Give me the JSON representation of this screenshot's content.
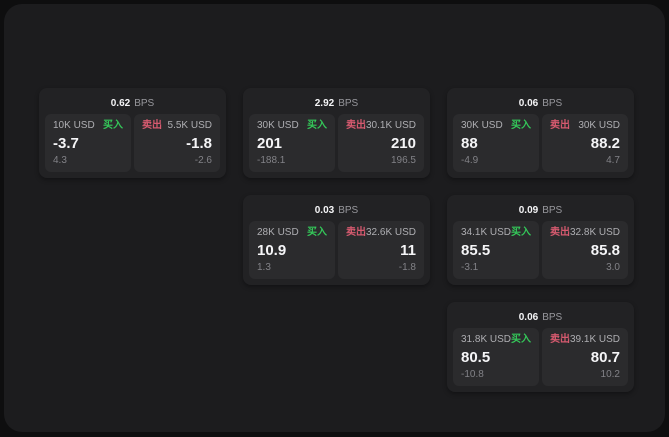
{
  "labels": {
    "bps_unit": "BPS",
    "buy": "买入",
    "sell": "卖出"
  },
  "colors": {
    "page_background": "#0e0e0f",
    "panel_background": "#1c1c1e",
    "card_background": "#222224",
    "tile_background": "#2b2b2d",
    "buy_green": "#34c759",
    "sell_red": "#d65a6f",
    "primary_text": "#f5f5f7",
    "secondary_text": "#aeaeb2",
    "muted_text": "#828287"
  },
  "cards": [
    {
      "bps": "0.62",
      "buy": {
        "amount": "10K USD",
        "value": "-3.7",
        "sub": "4.3"
      },
      "sell": {
        "amount": "5.5K USD",
        "value": "-1.8",
        "sub": "-2.6"
      }
    },
    {
      "bps": "2.92",
      "buy": {
        "amount": "30K USD",
        "value": "201",
        "sub": "-188.1"
      },
      "sell": {
        "amount": "30.1K USD",
        "value": "210",
        "sub": "196.5"
      }
    },
    {
      "bps": "0.06",
      "buy": {
        "amount": "30K USD",
        "value": "88",
        "sub": "-4.9"
      },
      "sell": {
        "amount": "30K USD",
        "value": "88.2",
        "sub": "4.7"
      }
    },
    {
      "bps": "0.03",
      "buy": {
        "amount": "28K USD",
        "value": "10.9",
        "sub": "1.3"
      },
      "sell": {
        "amount": "32.6K USD",
        "value": "11",
        "sub": "-1.8"
      }
    },
    {
      "bps": "0.09",
      "buy": {
        "amount": "34.1K USD",
        "value": "85.5",
        "sub": "-3.1"
      },
      "sell": {
        "amount": "32.8K USD",
        "value": "85.8",
        "sub": "3.0"
      }
    },
    {
      "bps": "0.06",
      "buy": {
        "amount": "31.8K USD",
        "value": "80.5",
        "sub": "-10.8"
      },
      "sell": {
        "amount": "39.1K USD",
        "value": "80.7",
        "sub": "10.2"
      }
    }
  ]
}
